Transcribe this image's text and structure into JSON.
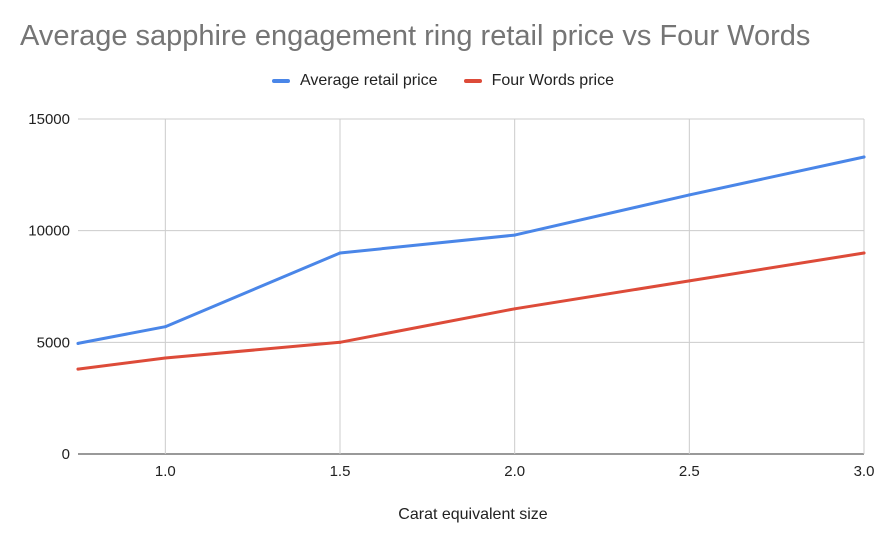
{
  "chart_data": {
    "type": "line",
    "title": "Average sapphire engagement ring retail price vs Four Words",
    "xlabel": "Carat equivalent size",
    "ylabel": "",
    "x": [
      0.75,
      1.0,
      1.5,
      2.0,
      2.5,
      3.0
    ],
    "xlim": [
      0.75,
      3.0
    ],
    "ylim": [
      0,
      15000
    ],
    "x_ticks": [
      "1.0",
      "1.5",
      "2.0",
      "2.5",
      "3.0"
    ],
    "y_ticks": [
      "0",
      "5000",
      "10000",
      "15000"
    ],
    "grid": true,
    "legend_position": "top",
    "series": [
      {
        "name": "Average retail price",
        "color": "#4a86e8",
        "values": [
          4950,
          5700,
          9000,
          9800,
          11600,
          13300
        ]
      },
      {
        "name": "Four Words price",
        "color": "#dd4b39",
        "values": [
          3800,
          4300,
          5000,
          6500,
          7750,
          9000
        ]
      }
    ]
  }
}
